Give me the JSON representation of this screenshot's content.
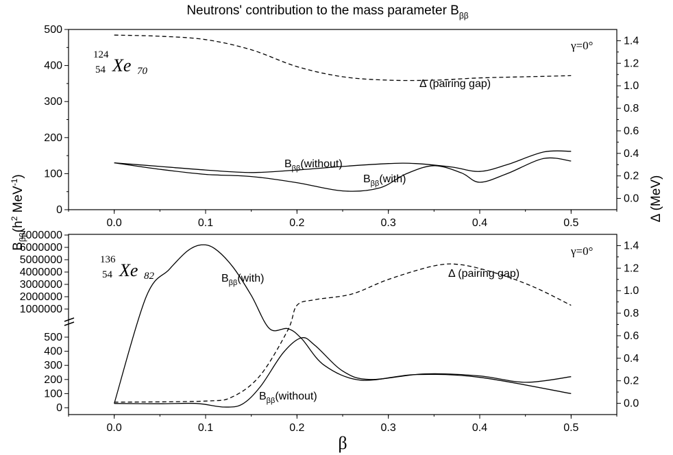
{
  "title": "Neutrons' contribution to the mass parameter B",
  "title_sub": "ββ",
  "y_left_label": {
    "main": "B",
    "sub": "ββ",
    "rest": "(h",
    "sup": "2",
    "rest2": " MeV",
    "sup2": "-1",
    "end": ")"
  },
  "y_right_label": "Δ (MeV)",
  "x_label": "β",
  "chart_data": [
    {
      "type": "line",
      "nucleus": {
        "mass": "124",
        "charge": "54",
        "symbol": "Xe",
        "neutrons": "70"
      },
      "gamma_label": "γ=0°",
      "xlim": [
        -0.05,
        0.55
      ],
      "ylim_left": [
        0,
        500
      ],
      "ylim_right": [
        -0.1,
        1.5
      ],
      "x_ticks": [
        "0.0",
        "0.1",
        "0.2",
        "0.3",
        "0.4",
        "0.5"
      ],
      "y_left_ticks": [
        "0",
        "100",
        "200",
        "300",
        "400",
        "500"
      ],
      "y_right_ticks": [
        "0.0",
        "0.2",
        "0.4",
        "0.6",
        "0.8",
        "1.0",
        "1.2",
        "1.4"
      ],
      "series": [
        {
          "name": "B_ββ(without)",
          "axis": "left",
          "style": "solid",
          "points": [
            [
              0.0,
              130
            ],
            [
              0.05,
              120
            ],
            [
              0.1,
              110
            ],
            [
              0.15,
              103
            ],
            [
              0.2,
              110
            ],
            [
              0.25,
              120
            ],
            [
              0.3,
              128
            ],
            [
              0.33,
              128
            ],
            [
              0.37,
              118
            ],
            [
              0.4,
              106
            ],
            [
              0.43,
              125
            ],
            [
              0.47,
              160
            ],
            [
              0.5,
              162
            ]
          ]
        },
        {
          "name": "B_ββ(with)",
          "axis": "left",
          "style": "solid",
          "points": [
            [
              0.0,
              130
            ],
            [
              0.05,
              112
            ],
            [
              0.1,
              98
            ],
            [
              0.15,
              92
            ],
            [
              0.2,
              75
            ],
            [
              0.25,
              52
            ],
            [
              0.29,
              60
            ],
            [
              0.32,
              100
            ],
            [
              0.35,
              122
            ],
            [
              0.38,
              102
            ],
            [
              0.4,
              76
            ],
            [
              0.43,
              100
            ],
            [
              0.47,
              142
            ],
            [
              0.5,
              135
            ]
          ]
        },
        {
          "name": "Δ (pairing gap)",
          "axis": "right",
          "style": "dashed",
          "points": [
            [
              0.0,
              1.45
            ],
            [
              0.05,
              1.44
            ],
            [
              0.1,
              1.41
            ],
            [
              0.15,
              1.32
            ],
            [
              0.2,
              1.17
            ],
            [
              0.25,
              1.08
            ],
            [
              0.3,
              1.05
            ],
            [
              0.35,
              1.05
            ],
            [
              0.4,
              1.07
            ],
            [
              0.45,
              1.08
            ],
            [
              0.5,
              1.09
            ]
          ]
        }
      ],
      "labels": {
        "without": "(without)",
        "with": "(with)",
        "gap": "Δ (pairing gap)",
        "b": "B",
        "bsub": "ββ"
      }
    },
    {
      "type": "line",
      "nucleus": {
        "mass": "136",
        "charge": "54",
        "symbol": "Xe",
        "neutrons": "82"
      },
      "gamma_label": "γ=0°",
      "xlim": [
        -0.05,
        0.55
      ],
      "ylim_left_lower": [
        0,
        500
      ],
      "ylim_left_upper": [
        1000000,
        7000000
      ],
      "y_break": true,
      "ylim_right": [
        -0.1,
        1.5
      ],
      "x_ticks": [
        "0.0",
        "0.1",
        "0.2",
        "0.3",
        "0.4",
        "0.5"
      ],
      "y_left_ticks_lower": [
        "0",
        "100",
        "200",
        "300",
        "400",
        "500"
      ],
      "y_left_ticks_upper": [
        "1000000",
        "2000000",
        "3000000",
        "4000000",
        "5000000",
        "6000000",
        "7000000"
      ],
      "y_right_ticks": [
        "0.0",
        "0.2",
        "0.4",
        "0.6",
        "0.8",
        "1.0",
        "1.2",
        "1.4"
      ],
      "series": [
        {
          "name": "B_ββ(with)",
          "axis": "left",
          "style": "solid",
          "points": [
            [
              0.0,
              30
            ],
            [
              0.035,
              2000000
            ],
            [
              0.06,
              4200000
            ],
            [
              0.08,
              5700000
            ],
            [
              0.095,
              6200000
            ],
            [
              0.11,
              5900000
            ],
            [
              0.13,
              4400000
            ],
            [
              0.15,
              2100000
            ],
            [
              0.17,
              560
            ],
            [
              0.19,
              560
            ],
            [
              0.205,
              490
            ],
            [
              0.23,
              300
            ],
            [
              0.27,
              195
            ],
            [
              0.33,
              235
            ],
            [
              0.4,
              215
            ],
            [
              0.5,
              100
            ]
          ]
        },
        {
          "name": "B_ββ(without)",
          "axis": "left",
          "style": "solid",
          "points": [
            [
              0.0,
              30
            ],
            [
              0.05,
              28
            ],
            [
              0.09,
              30
            ],
            [
              0.12,
              5
            ],
            [
              0.14,
              25
            ],
            [
              0.16,
              150
            ],
            [
              0.185,
              390
            ],
            [
              0.205,
              495
            ],
            [
              0.22,
              440
            ],
            [
              0.25,
              260
            ],
            [
              0.28,
              200
            ],
            [
              0.34,
              240
            ],
            [
              0.4,
              225
            ],
            [
              0.45,
              180
            ],
            [
              0.5,
              220
            ]
          ]
        },
        {
          "name": "Δ (pairing gap)",
          "axis": "right",
          "style": "dashed",
          "points": [
            [
              0.0,
              0.01
            ],
            [
              0.1,
              0.02
            ],
            [
              0.13,
              0.06
            ],
            [
              0.16,
              0.25
            ],
            [
              0.19,
              0.65
            ],
            [
              0.2,
              0.87
            ],
            [
              0.22,
              0.92
            ],
            [
              0.26,
              0.97
            ],
            [
              0.3,
              1.1
            ],
            [
              0.35,
              1.22
            ],
            [
              0.38,
              1.23
            ],
            [
              0.42,
              1.15
            ],
            [
              0.46,
              1.03
            ],
            [
              0.5,
              0.87
            ]
          ]
        }
      ],
      "labels": {
        "without": "(without)",
        "with": "(with)",
        "gap": "Δ (pairing gap)",
        "b": "B",
        "bsub": "ββ"
      }
    }
  ]
}
